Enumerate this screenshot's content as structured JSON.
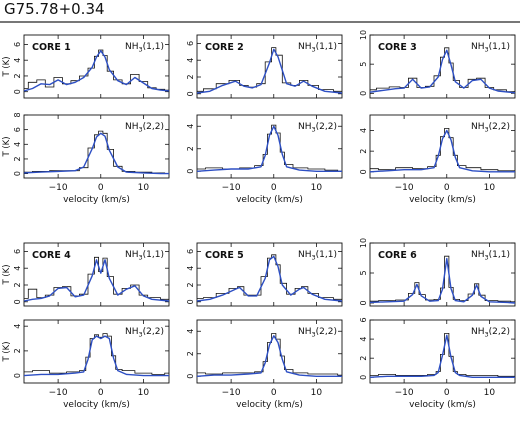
{
  "title": "G75.78+0.34",
  "axis": {
    "xlabel": "velocity (km/s)",
    "ylabel": "T (K)",
    "xlim": [
      -18,
      16
    ],
    "xticks": [
      -10,
      0,
      10
    ],
    "xtick_labels": [
      "−10",
      "0",
      "10"
    ]
  },
  "chart_data": [
    {
      "type": "line",
      "core": "CORE 1",
      "transition": "NH₃(1,1)",
      "ylim": [
        -0.8,
        7.2
      ],
      "yticks": [
        0,
        2,
        4,
        6
      ],
      "series": [
        {
          "name": "observed",
          "x": [
            -18,
            -16,
            -14,
            -12,
            -10,
            -8,
            -6,
            -4,
            -2,
            -1,
            0,
            1,
            2,
            4,
            6,
            8,
            10,
            12,
            14,
            16
          ],
          "y": [
            0.4,
            1.2,
            1.5,
            0.6,
            1.8,
            1.0,
            1.4,
            2.0,
            3.0,
            4.5,
            5.3,
            4.6,
            2.6,
            1.5,
            1.0,
            2.2,
            1.3,
            0.5,
            0.3,
            0.2
          ]
        },
        {
          "name": "hfs fit",
          "x": [
            -18,
            -16,
            -14,
            -12,
            -10,
            -8,
            -6,
            -4,
            -2,
            -1,
            0,
            1,
            2,
            4,
            6,
            8,
            10,
            12,
            14,
            16
          ],
          "y": [
            0.1,
            0.4,
            1.0,
            0.9,
            1.5,
            0.9,
            1.2,
            1.8,
            3.1,
            4.4,
            5.2,
            4.4,
            2.8,
            1.4,
            0.9,
            1.8,
            1.1,
            0.4,
            0.2,
            0.1
          ]
        }
      ]
    },
    {
      "type": "line",
      "core": "CORE 1",
      "transition": "NH₃(2,2)",
      "ylim": [
        -0.6,
        8
      ],
      "yticks": [
        0,
        2,
        4,
        6,
        8
      ],
      "series": [
        {
          "name": "observed",
          "x": [
            -18,
            -14,
            -10,
            -6,
            -4,
            -2,
            -1,
            0,
            1,
            2,
            4,
            6,
            10,
            14,
            16
          ],
          "y": [
            0.2,
            0.3,
            0.4,
            0.4,
            0.8,
            3.5,
            5.3,
            5.8,
            5.5,
            3.3,
            1.0,
            0.3,
            0.2,
            0.1,
            0.0
          ]
        },
        {
          "name": "hfs fit",
          "x": [
            -18,
            -14,
            -10,
            -6,
            -4,
            -2,
            -1,
            0,
            1,
            2,
            4,
            6,
            10,
            14,
            16
          ],
          "y": [
            0.1,
            0.2,
            0.3,
            0.4,
            0.9,
            3.4,
            5.0,
            5.5,
            5.1,
            3.2,
            0.9,
            0.2,
            0.1,
            0.0,
            0.0
          ]
        }
      ]
    },
    {
      "type": "line",
      "core": "CORE 2",
      "transition": "NH₃(1,1)",
      "ylim": [
        -0.5,
        7
      ],
      "yticks": [
        0,
        2,
        4,
        6
      ],
      "series": [
        {
          "name": "observed",
          "x": [
            -18,
            -15,
            -12,
            -9,
            -7,
            -5,
            -3,
            -1,
            0,
            1,
            3,
            5,
            7,
            9,
            12,
            16
          ],
          "y": [
            0.3,
            0.6,
            1.2,
            1.6,
            1.0,
            0.8,
            1.2,
            3.8,
            5.5,
            4.6,
            1.3,
            1.0,
            1.6,
            1.0,
            0.5,
            0.3
          ]
        },
        {
          "name": "hfs fit",
          "x": [
            -18,
            -15,
            -12,
            -9,
            -7,
            -5,
            -3,
            -1,
            0,
            1,
            3,
            5,
            7,
            9,
            12,
            16
          ],
          "y": [
            0.1,
            0.3,
            1.0,
            1.5,
            0.9,
            0.7,
            1.1,
            3.7,
            5.3,
            4.4,
            1.2,
            0.9,
            1.5,
            0.9,
            0.3,
            0.1
          ]
        }
      ]
    },
    {
      "type": "line",
      "core": "CORE 2",
      "transition": "NH₃(2,2)",
      "ylim": [
        -0.6,
        5
      ],
      "yticks": [
        0,
        2,
        4
      ],
      "series": [
        {
          "name": "observed",
          "x": [
            -18,
            -14,
            -10,
            -6,
            -3,
            -2,
            -1,
            0,
            1,
            2,
            3,
            6,
            10,
            14,
            16
          ],
          "y": [
            0.2,
            0.3,
            0.2,
            0.3,
            0.5,
            1.5,
            3.3,
            4.1,
            3.4,
            1.7,
            0.6,
            0.3,
            0.2,
            0.1,
            0.0
          ]
        },
        {
          "name": "hfs fit",
          "x": [
            -18,
            -14,
            -10,
            -6,
            -3,
            -2,
            -1,
            0,
            1,
            2,
            3,
            6,
            10,
            14,
            16
          ],
          "y": [
            0.0,
            0.1,
            0.2,
            0.2,
            0.4,
            1.4,
            3.2,
            4.0,
            3.2,
            1.5,
            0.4,
            0.1,
            0.0,
            0.0,
            0.0
          ]
        }
      ]
    },
    {
      "type": "line",
      "core": "CORE 3",
      "transition": "NH₃(1,1)",
      "ylim": [
        -0.8,
        10
      ],
      "yticks": [
        0,
        5,
        10
      ],
      "series": [
        {
          "name": "observed",
          "x": [
            -18,
            -15,
            -12,
            -10,
            -8,
            -6,
            -4,
            -2,
            -1,
            0,
            1,
            2,
            4,
            6,
            8,
            10,
            12,
            16
          ],
          "y": [
            0.6,
            0.9,
            1.1,
            1.0,
            2.6,
            1.0,
            1.2,
            3.0,
            6.2,
            7.8,
            5.2,
            2.2,
            1.0,
            2.4,
            2.6,
            1.0,
            0.6,
            0.3
          ]
        },
        {
          "name": "hfs fit",
          "x": [
            -18,
            -15,
            -12,
            -10,
            -8,
            -6,
            -4,
            -2,
            -1,
            0,
            1,
            2,
            4,
            6,
            8,
            10,
            12,
            16
          ],
          "y": [
            0.2,
            0.5,
            0.8,
            0.9,
            2.4,
            0.9,
            1.1,
            2.8,
            5.8,
            7.4,
            4.9,
            2.0,
            0.9,
            2.2,
            2.4,
            0.9,
            0.4,
            0.1
          ]
        }
      ]
    },
    {
      "type": "line",
      "core": "CORE 3",
      "transition": "NH₃(2,2)",
      "ylim": [
        -0.6,
        5.5
      ],
      "yticks": [
        0,
        2,
        4
      ],
      "series": [
        {
          "name": "observed",
          "x": [
            -18,
            -14,
            -10,
            -6,
            -3,
            -2,
            -1,
            0,
            1,
            2,
            3,
            6,
            10,
            14,
            16
          ],
          "y": [
            0.3,
            0.2,
            0.4,
            0.3,
            0.5,
            1.6,
            3.4,
            4.2,
            3.3,
            1.6,
            0.6,
            0.4,
            0.2,
            0.1,
            0.1
          ]
        },
        {
          "name": "hfs fit",
          "x": [
            -18,
            -14,
            -10,
            -6,
            -3,
            -2,
            -1,
            0,
            1,
            2,
            3,
            6,
            10,
            14,
            16
          ],
          "y": [
            0.0,
            0.1,
            0.2,
            0.2,
            0.4,
            1.5,
            3.2,
            4.0,
            3.1,
            1.4,
            0.4,
            0.1,
            0.0,
            0.0,
            0.0
          ]
        }
      ]
    },
    {
      "type": "line",
      "core": "CORE 4",
      "transition": "NH₃(1,1)",
      "ylim": [
        -0.5,
        7
      ],
      "yticks": [
        0,
        2,
        4,
        6
      ],
      "series": [
        {
          "name": "observed",
          "x": [
            -18,
            -16,
            -14,
            -12,
            -10,
            -8,
            -6,
            -4,
            -2,
            -1,
            0,
            1,
            2,
            4,
            6,
            8,
            10,
            12,
            16
          ],
          "y": [
            0.4,
            1.5,
            0.5,
            0.8,
            1.7,
            1.8,
            0.7,
            0.9,
            3.3,
            5.3,
            3.6,
            5.2,
            3.0,
            0.9,
            1.6,
            2.0,
            0.8,
            0.5,
            0.3
          ]
        },
        {
          "name": "hfs fit",
          "x": [
            -18,
            -16,
            -14,
            -12,
            -10,
            -8,
            -6,
            -4,
            -2,
            -1,
            0,
            1,
            2,
            4,
            6,
            8,
            10,
            12,
            16
          ],
          "y": [
            0.1,
            0.3,
            0.4,
            0.7,
            1.6,
            1.7,
            0.6,
            0.8,
            3.1,
            5.0,
            3.4,
            5.0,
            2.8,
            0.8,
            1.5,
            1.9,
            0.7,
            0.3,
            0.1
          ]
        }
      ]
    },
    {
      "type": "line",
      "core": "CORE 4",
      "transition": "NH₃(2,2)",
      "ylim": [
        -0.6,
        4.5
      ],
      "yticks": [
        0,
        2,
        4
      ],
      "series": [
        {
          "name": "observed",
          "x": [
            -18,
            -14,
            -10,
            -6,
            -4,
            -3,
            -2,
            -1,
            0,
            1,
            2,
            3,
            4,
            6,
            10,
            14,
            16
          ],
          "y": [
            0.3,
            0.4,
            0.2,
            0.3,
            0.4,
            1.5,
            3.0,
            3.3,
            3.1,
            3.4,
            3.2,
            1.6,
            0.5,
            0.4,
            0.2,
            0.1,
            0.2
          ]
        },
        {
          "name": "hfs fit",
          "x": [
            -18,
            -14,
            -10,
            -6,
            -4,
            -3,
            -2,
            -1,
            0,
            1,
            2,
            3,
            4,
            6,
            10,
            14,
            16
          ],
          "y": [
            0.0,
            0.1,
            0.1,
            0.2,
            0.3,
            1.3,
            2.9,
            3.2,
            3.0,
            3.2,
            3.0,
            1.4,
            0.4,
            0.1,
            0.0,
            0.0,
            0.0
          ]
        }
      ]
    },
    {
      "type": "line",
      "core": "CORE 5",
      "transition": "NH₃(1,1)",
      "ylim": [
        -0.5,
        7
      ],
      "yticks": [
        0,
        2,
        4,
        6
      ],
      "series": [
        {
          "name": "observed",
          "x": [
            -18,
            -15,
            -12,
            -9,
            -8,
            -6,
            -4,
            -2,
            -1,
            0,
            1,
            2,
            4,
            6,
            7,
            9,
            12,
            16
          ],
          "y": [
            0.4,
            0.5,
            1.0,
            1.6,
            1.8,
            0.8,
            0.8,
            3.0,
            5.2,
            5.6,
            4.4,
            2.2,
            0.9,
            1.6,
            1.8,
            1.0,
            0.5,
            0.3
          ]
        },
        {
          "name": "hfs fit",
          "x": [
            -18,
            -15,
            -12,
            -9,
            -8,
            -6,
            -4,
            -2,
            -1,
            0,
            1,
            2,
            4,
            6,
            7,
            9,
            12,
            16
          ],
          "y": [
            0.1,
            0.3,
            0.8,
            1.5,
            1.7,
            0.7,
            0.7,
            2.8,
            5.0,
            5.4,
            4.2,
            2.0,
            0.8,
            1.5,
            1.7,
            0.9,
            0.3,
            0.1
          ]
        }
      ]
    },
    {
      "type": "line",
      "core": "CORE 5",
      "transition": "NH₃(2,2)",
      "ylim": [
        -0.6,
        5
      ],
      "yticks": [
        0,
        2,
        4
      ],
      "series": [
        {
          "name": "observed",
          "x": [
            -18,
            -14,
            -10,
            -6,
            -3,
            -2,
            -1,
            0,
            1,
            2,
            3,
            6,
            10,
            14,
            16
          ],
          "y": [
            0.3,
            0.2,
            0.3,
            0.3,
            0.4,
            1.3,
            3.0,
            3.8,
            3.3,
            1.8,
            0.6,
            0.3,
            0.2,
            0.2,
            0.1
          ]
        },
        {
          "name": "hfs fit",
          "x": [
            -18,
            -14,
            -10,
            -6,
            -3,
            -2,
            -1,
            0,
            1,
            2,
            3,
            6,
            10,
            14,
            16
          ],
          "y": [
            0.0,
            0.1,
            0.1,
            0.2,
            0.3,
            1.2,
            2.8,
            3.6,
            3.0,
            1.5,
            0.4,
            0.1,
            0.0,
            0.0,
            0.0
          ]
        }
      ]
    },
    {
      "type": "line",
      "core": "CORE 6",
      "transition": "NH₃(1,1)",
      "ylim": [
        -0.5,
        10
      ],
      "yticks": [
        0,
        5,
        10
      ],
      "series": [
        {
          "name": "observed",
          "x": [
            -18,
            -14,
            -10,
            -8,
            -7,
            -6,
            -4,
            -2,
            -1,
            0,
            1,
            2,
            4,
            6,
            7,
            8,
            10,
            14,
            16
          ],
          "y": [
            0.3,
            0.4,
            0.5,
            1.6,
            3.4,
            1.4,
            0.5,
            0.6,
            2.5,
            7.8,
            2.6,
            0.6,
            0.4,
            1.5,
            3.2,
            1.3,
            0.4,
            0.3,
            0.2
          ]
        },
        {
          "name": "hfs fit",
          "x": [
            -18,
            -14,
            -10,
            -8,
            -7,
            -6,
            -4,
            -2,
            -1,
            0,
            1,
            2,
            4,
            6,
            7,
            8,
            10,
            14,
            16
          ],
          "y": [
            0.1,
            0.2,
            0.3,
            1.4,
            3.1,
            1.2,
            0.3,
            0.4,
            2.3,
            7.4,
            2.4,
            0.4,
            0.2,
            1.3,
            3.0,
            1.1,
            0.2,
            0.1,
            0.0
          ]
        }
      ]
    },
    {
      "type": "line",
      "core": "CORE 6",
      "transition": "NH₃(2,2)",
      "ylim": [
        -0.6,
        6
      ],
      "yticks": [
        0,
        2,
        4,
        6
      ],
      "series": [
        {
          "name": "observed",
          "x": [
            -18,
            -14,
            -10,
            -6,
            -3,
            -2,
            -1,
            0,
            1,
            2,
            3,
            6,
            10,
            14,
            16
          ],
          "y": [
            0.2,
            0.3,
            0.2,
            0.2,
            0.3,
            0.6,
            2.4,
            4.6,
            2.2,
            0.6,
            0.3,
            0.2,
            0.2,
            0.1,
            0.1
          ]
        },
        {
          "name": "hfs fit",
          "x": [
            -18,
            -14,
            -10,
            -6,
            -3,
            -2,
            -1,
            0,
            1,
            2,
            3,
            6,
            10,
            14,
            16
          ],
          "y": [
            0.0,
            0.1,
            0.1,
            0.1,
            0.2,
            0.5,
            2.3,
            4.4,
            2.1,
            0.5,
            0.2,
            0.0,
            0.0,
            0.0,
            0.0
          ]
        }
      ]
    }
  ],
  "colors": {
    "observed": "#111111",
    "fit": "#2d4fc4",
    "frame": "#111111"
  }
}
